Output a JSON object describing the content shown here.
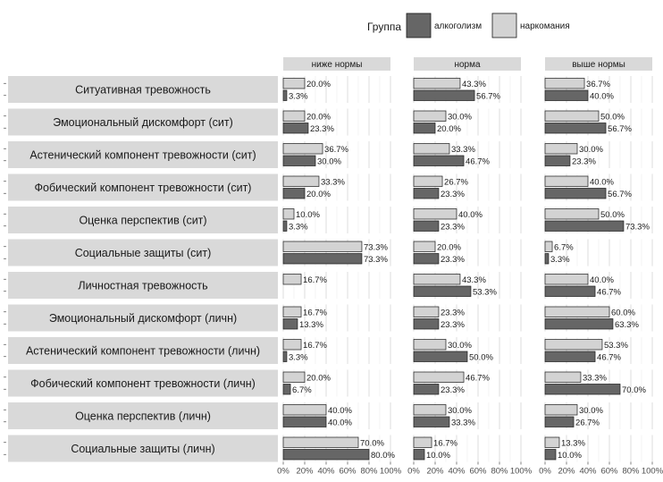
{
  "chart_data": {
    "type": "bar",
    "orientation": "horizontal",
    "legend": {
      "title": "Группа",
      "placement": "top-right"
    },
    "series": [
      {
        "name": "алкоголизм",
        "color": "#666666"
      },
      {
        "name": "наркомания",
        "color": "#d3d3d3"
      }
    ],
    "facets": [
      "ниже нормы",
      "норма",
      "выше нормы"
    ],
    "xlim": [
      0,
      100
    ],
    "x_ticks": [
      "0%",
      "20%",
      "40%",
      "60%",
      "80%",
      "100%"
    ],
    "grid": true,
    "categories": [
      "Ситуативная тревожность",
      "Эмоциональный дискомфорт (сит)",
      "Астенический компонент тревожности (сит)",
      "Фобический компонент тревожности (сит)",
      "Оценка перспектив (сит)",
      "Социальные защиты (сит)",
      "Личностная тревожность",
      "Эмоциональный дискомфорт (личн)",
      "Астенический компонент тревожности (личн)",
      "Фобический компонент тревожности (личн)",
      "Оценка перспектив (личн)",
      "Социальные защиты (личн)"
    ],
    "values": {
      "наркомания": [
        [
          20.0,
          43.3,
          36.7
        ],
        [
          20.0,
          30.0,
          50.0
        ],
        [
          36.7,
          33.3,
          30.0
        ],
        [
          33.3,
          26.7,
          40.0
        ],
        [
          10.0,
          40.0,
          50.0
        ],
        [
          73.3,
          20.0,
          6.7
        ],
        [
          16.7,
          43.3,
          40.0
        ],
        [
          16.7,
          23.3,
          60.0
        ],
        [
          16.7,
          30.0,
          53.3
        ],
        [
          20.0,
          46.7,
          33.3
        ],
        [
          40.0,
          30.0,
          30.0
        ],
        [
          70.0,
          16.7,
          13.3
        ]
      ],
      "алкоголизм": [
        [
          3.3,
          56.7,
          40.0
        ],
        [
          23.3,
          20.0,
          56.7
        ],
        [
          30.0,
          46.7,
          23.3
        ],
        [
          20.0,
          23.3,
          56.7
        ],
        [
          3.3,
          23.3,
          73.3
        ],
        [
          73.3,
          23.3,
          3.3
        ],
        [
          null,
          53.3,
          46.7
        ],
        [
          13.3,
          23.3,
          63.3
        ],
        [
          3.3,
          50.0,
          46.7
        ],
        [
          6.7,
          23.3,
          70.0
        ],
        [
          40.0,
          33.3,
          26.7
        ],
        [
          80.0,
          10.0,
          10.0
        ]
      ]
    }
  }
}
